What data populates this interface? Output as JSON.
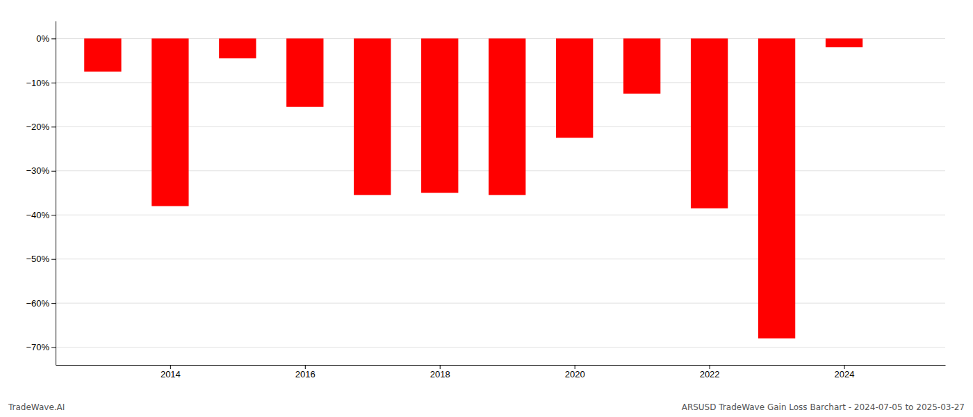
{
  "chart_data": {
    "type": "bar",
    "x": [
      2013,
      2014,
      2015,
      2016,
      2017,
      2018,
      2019,
      2020,
      2021,
      2022,
      2023,
      2024
    ],
    "values": [
      -7.5,
      -38.0,
      -4.5,
      -15.5,
      -35.5,
      -35.0,
      -35.5,
      -22.5,
      -12.5,
      -38.5,
      -68.0,
      -2.0
    ],
    "color": "#ff0000",
    "xlim": [
      2012.3,
      2025.5
    ],
    "xticks": [
      2014,
      2016,
      2018,
      2020,
      2022,
      2024
    ],
    "ylim": [
      -74,
      4
    ],
    "yticks": [
      {
        "value": 0,
        "label": "0%"
      },
      {
        "value": -10,
        "label": "−10%"
      },
      {
        "value": -20,
        "label": "−20%"
      },
      {
        "value": -30,
        "label": "−30%"
      },
      {
        "value": -40,
        "label": "−40%"
      },
      {
        "value": -50,
        "label": "−50%"
      },
      {
        "value": -60,
        "label": "−60%"
      },
      {
        "value": -70,
        "label": "−70%"
      }
    ],
    "grid": true,
    "annotations": [
      "TradeWave.AI",
      "ARSUSD TradeWave Gain Loss Barchart - 2024-07-05 to 2025-03-27"
    ]
  }
}
